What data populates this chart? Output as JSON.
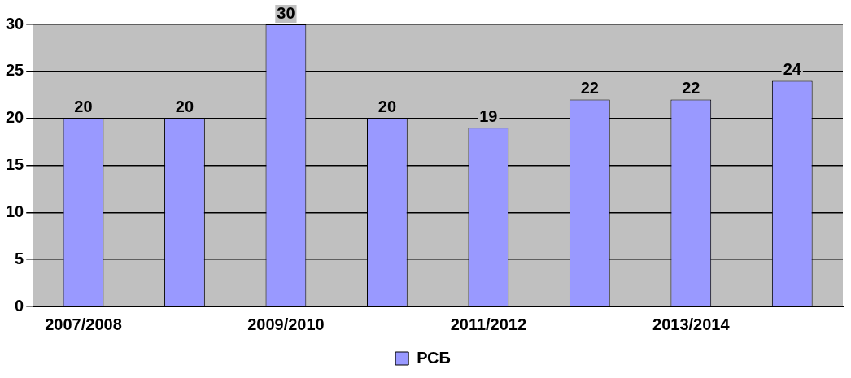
{
  "chart_data": {
    "type": "bar",
    "categories": [
      "2007/2008",
      null,
      "2009/2010",
      null,
      "2011/2012",
      null,
      "2013/2014",
      null
    ],
    "series": [
      {
        "name": "РСБ",
        "color": "#9999ff",
        "values": [
          20,
          20,
          30,
          20,
          19,
          22,
          22,
          24
        ]
      }
    ],
    "ylim": [
      0,
      30
    ],
    "yticks": [
      0,
      5,
      10,
      15,
      20,
      25,
      30
    ],
    "grid": "y",
    "legend": "bottom",
    "data_labels": true
  }
}
